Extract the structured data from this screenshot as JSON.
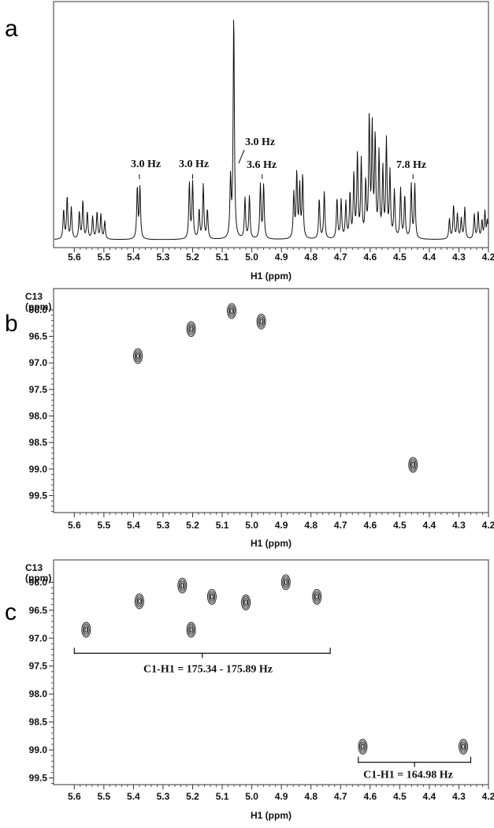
{
  "chart_data": [
    {
      "panel": "a",
      "type": "line",
      "xlabel": "H1 (ppm)",
      "x_reversed": true,
      "xlim": [
        4.2,
        5.67
      ],
      "xticks": [
        5.6,
        5.5,
        5.4,
        5.3,
        5.2,
        5.1,
        5.0,
        4.9,
        4.8,
        4.7,
        4.6,
        4.5,
        4.4,
        4.3,
        4.2
      ],
      "annotations": [
        {
          "text": "3.0 Hz",
          "x": 5.38
        },
        {
          "text": "3.0 Hz",
          "x": 5.2
        },
        {
          "text": "3.0 Hz",
          "x": 5.065
        },
        {
          "text": "3.6 Hz",
          "x": 4.965
        },
        {
          "text": "7.8 Hz",
          "x": 4.455
        }
      ],
      "peaks": [
        {
          "x": 5.636,
          "h": 0.13
        },
        {
          "x": 5.624,
          "h": 0.19
        },
        {
          "x": 5.61,
          "h": 0.14
        },
        {
          "x": 5.583,
          "h": 0.12
        },
        {
          "x": 5.571,
          "h": 0.17
        },
        {
          "x": 5.556,
          "h": 0.12
        },
        {
          "x": 5.538,
          "h": 0.1
        },
        {
          "x": 5.523,
          "h": 0.12
        },
        {
          "x": 5.51,
          "h": 0.11
        },
        {
          "x": 5.497,
          "h": 0.08
        },
        {
          "x": 5.387,
          "h": 0.23
        },
        {
          "x": 5.378,
          "h": 0.23
        },
        {
          "x": 5.211,
          "h": 0.25
        },
        {
          "x": 5.2,
          "h": 0.25
        },
        {
          "x": 5.178,
          "h": 0.13
        },
        {
          "x": 5.164,
          "h": 0.24
        },
        {
          "x": 5.15,
          "h": 0.13
        },
        {
          "x": 5.072,
          "h": 0.26
        },
        {
          "x": 5.061,
          "h": 1.0
        },
        {
          "x": 5.023,
          "h": 0.18
        },
        {
          "x": 5.008,
          "h": 0.19
        },
        {
          "x": 4.971,
          "h": 0.24
        },
        {
          "x": 4.96,
          "h": 0.24
        },
        {
          "x": 4.858,
          "h": 0.2
        },
        {
          "x": 4.848,
          "h": 0.29
        },
        {
          "x": 4.838,
          "h": 0.23
        },
        {
          "x": 4.828,
          "h": 0.28
        },
        {
          "x": 4.772,
          "h": 0.18
        },
        {
          "x": 4.755,
          "h": 0.21
        },
        {
          "x": 4.712,
          "h": 0.18
        },
        {
          "x": 4.698,
          "h": 0.17
        },
        {
          "x": 4.682,
          "h": 0.16
        },
        {
          "x": 4.668,
          "h": 0.2
        },
        {
          "x": 4.655,
          "h": 0.28
        },
        {
          "x": 4.643,
          "h": 0.37
        },
        {
          "x": 4.63,
          "h": 0.34
        },
        {
          "x": 4.615,
          "h": 0.24
        },
        {
          "x": 4.603,
          "h": 0.53
        },
        {
          "x": 4.593,
          "h": 0.48
        },
        {
          "x": 4.583,
          "h": 0.44
        },
        {
          "x": 4.57,
          "h": 0.37
        },
        {
          "x": 4.557,
          "h": 0.3
        },
        {
          "x": 4.545,
          "h": 0.43
        },
        {
          "x": 4.533,
          "h": 0.29
        },
        {
          "x": 4.518,
          "h": 0.21
        },
        {
          "x": 4.497,
          "h": 0.22
        },
        {
          "x": 4.483,
          "h": 0.19
        },
        {
          "x": 4.461,
          "h": 0.24
        },
        {
          "x": 4.449,
          "h": 0.24
        },
        {
          "x": 4.332,
          "h": 0.09
        },
        {
          "x": 4.318,
          "h": 0.15
        },
        {
          "x": 4.305,
          "h": 0.11
        },
        {
          "x": 4.292,
          "h": 0.09
        },
        {
          "x": 4.28,
          "h": 0.14
        },
        {
          "x": 4.248,
          "h": 0.11
        },
        {
          "x": 4.235,
          "h": 0.12
        },
        {
          "x": 4.222,
          "h": 0.08
        },
        {
          "x": 4.212,
          "h": 0.12
        },
        {
          "x": 4.204,
          "h": 0.08
        }
      ]
    },
    {
      "panel": "b",
      "type": "scatter",
      "xlabel": "H1 (ppm)",
      "ylabel": "C13\n(ppm)",
      "x_reversed": true,
      "xlim": [
        4.2,
        5.67
      ],
      "ylim": [
        95.6,
        99.82
      ],
      "xticks": [
        5.6,
        5.5,
        5.4,
        5.3,
        5.2,
        5.1,
        5.0,
        4.9,
        4.8,
        4.7,
        4.6,
        4.5,
        4.4,
        4.3,
        4.2
      ],
      "yticks": [
        "96.0",
        "96.5",
        "97.0",
        "97.5",
        "98.0",
        "98.5",
        "99.0",
        "99.5"
      ],
      "points": [
        {
          "x": 5.385,
          "y": 96.87
        },
        {
          "x": 5.205,
          "y": 96.36
        },
        {
          "x": 5.068,
          "y": 96.02
        },
        {
          "x": 4.968,
          "y": 96.22
        },
        {
          "x": 4.455,
          "y": 98.92
        }
      ]
    },
    {
      "panel": "c",
      "type": "scatter",
      "xlabel": "H1 (ppm)",
      "ylabel": "C13\n(ppm)",
      "x_reversed": true,
      "xlim": [
        4.2,
        5.67
      ],
      "ylim": [
        95.6,
        99.62
      ],
      "xticks": [
        5.6,
        5.5,
        5.4,
        5.3,
        5.2,
        5.1,
        5.0,
        4.9,
        4.8,
        4.7,
        4.6,
        4.5,
        4.4,
        4.3,
        4.2
      ],
      "yticks": [
        "96.0",
        "96.5",
        "97.0",
        "97.5",
        "98.0",
        "98.5",
        "99.0",
        "99.5"
      ],
      "points": [
        {
          "x": 5.56,
          "y": 96.85
        },
        {
          "x": 5.38,
          "y": 96.34
        },
        {
          "x": 5.235,
          "y": 96.06
        },
        {
          "x": 5.205,
          "y": 96.85
        },
        {
          "x": 5.135,
          "y": 96.26
        },
        {
          "x": 5.02,
          "y": 96.36
        },
        {
          "x": 4.885,
          "y": 96.0
        },
        {
          "x": 4.78,
          "y": 96.26
        },
        {
          "x": 4.625,
          "y": 98.94
        },
        {
          "x": 4.285,
          "y": 98.94
        }
      ],
      "brackets": [
        {
          "text": "C1-H1 = 175.34 - 175.89 Hz",
          "x_from": 5.6,
          "x_to": 4.735,
          "y": 97.27
        },
        {
          "text": "C1-H1 = 164.98 Hz",
          "x_from": 4.64,
          "x_to": 4.26,
          "y": 99.22
        }
      ]
    }
  ]
}
